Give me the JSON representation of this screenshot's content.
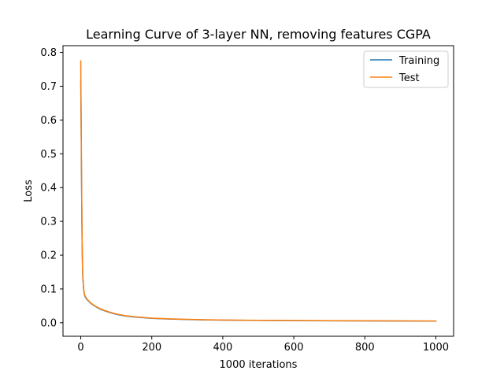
{
  "chart_data": {
    "type": "line",
    "title": "Learning Curve of 3-layer NN, removing features CGPA",
    "xlabel": "1000 iterations",
    "ylabel": "Loss",
    "xlim": [
      -50,
      1050
    ],
    "ylim": [
      -0.04,
      0.82
    ],
    "xticks": [
      0,
      200,
      400,
      600,
      800,
      1000
    ],
    "xtick_labels": [
      "0",
      "200",
      "400",
      "600",
      "800",
      "1000"
    ],
    "yticks": [
      0.0,
      0.1,
      0.2,
      0.3,
      0.4,
      0.5,
      0.6,
      0.7,
      0.8
    ],
    "ytick_labels": [
      "0.0",
      "0.1",
      "0.2",
      "0.3",
      "0.4",
      "0.5",
      "0.6",
      "0.7",
      "0.8"
    ],
    "grid": false,
    "legend_position": "upper right",
    "series": [
      {
        "name": "Training",
        "color": "#1f77b4",
        "x": [
          0,
          1,
          2,
          3,
          4,
          5,
          6,
          8,
          10,
          12,
          15,
          20,
          25,
          30,
          40,
          50,
          60,
          80,
          100,
          125,
          150,
          200,
          250,
          300,
          350,
          400,
          500,
          600,
          700,
          800,
          900,
          1000
        ],
        "y": [
          0.715,
          0.6,
          0.45,
          0.32,
          0.22,
          0.16,
          0.13,
          0.1,
          0.085,
          0.078,
          0.072,
          0.066,
          0.061,
          0.056,
          0.049,
          0.043,
          0.038,
          0.031,
          0.025,
          0.02,
          0.017,
          0.013,
          0.011,
          0.0095,
          0.0085,
          0.0078,
          0.0068,
          0.0062,
          0.0058,
          0.0054,
          0.0051,
          0.0048
        ]
      },
      {
        "name": "Test",
        "color": "#ff7f0e",
        "x": [
          0,
          1,
          2,
          3,
          4,
          5,
          6,
          8,
          10,
          12,
          15,
          20,
          25,
          30,
          40,
          50,
          60,
          80,
          100,
          125,
          150,
          200,
          250,
          300,
          350,
          400,
          500,
          600,
          700,
          800,
          900,
          1000
        ],
        "y": [
          0.775,
          0.62,
          0.46,
          0.33,
          0.225,
          0.165,
          0.135,
          0.102,
          0.087,
          0.08,
          0.074,
          0.067,
          0.062,
          0.057,
          0.05,
          0.044,
          0.039,
          0.032,
          0.026,
          0.021,
          0.018,
          0.0135,
          0.0115,
          0.01,
          0.009,
          0.0082,
          0.0072,
          0.0066,
          0.0061,
          0.0057,
          0.0054,
          0.0051
        ]
      }
    ]
  }
}
